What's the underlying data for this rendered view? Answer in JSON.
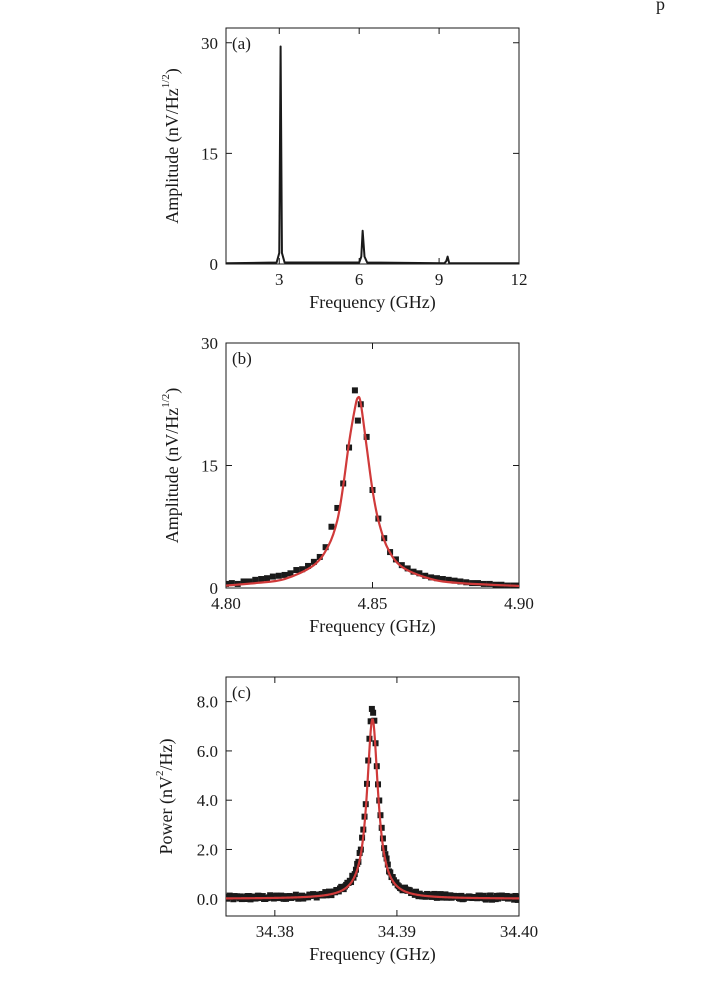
{
  "corner_text": "p",
  "chart_data": [
    {
      "type": "line",
      "panel_label": "(a)",
      "xlabel": "Frequency (GHz)",
      "ylabel": "Amplitude (nV/Hz",
      "ylabel_sup": "1/2",
      "ylabel_end": ")",
      "xlim": [
        1,
        12
      ],
      "ylim": [
        0,
        32
      ],
      "xticks": [
        3,
        6,
        9,
        12
      ],
      "xtick_labels": [
        "3",
        "6",
        "9",
        "12"
      ],
      "yticks": [
        0,
        15,
        30
      ],
      "ytick_labels": [
        "0",
        "15",
        "30"
      ],
      "series": [
        {
          "color": "#1a1a1a",
          "x": [
            1.0,
            2.9,
            3.0,
            3.05,
            3.1,
            3.2,
            6.0,
            6.08,
            6.13,
            6.2,
            6.3,
            9.2,
            9.27,
            9.32,
            9.38,
            12.0
          ],
          "y": [
            0.1,
            0.2,
            1.5,
            29.5,
            1.5,
            0.2,
            0.2,
            1.0,
            4.5,
            1.0,
            0.2,
            0.1,
            0.4,
            1.0,
            0.1,
            0.1
          ]
        }
      ]
    },
    {
      "type": "scatter",
      "panel_label": "(b)",
      "xlabel": "Frequency (GHz)",
      "ylabel": "Amplitude (nV/Hz",
      "ylabel_sup": "1/2",
      "ylabel_end": ")",
      "xlim": [
        4.8,
        4.9
      ],
      "ylim": [
        0,
        30
      ],
      "xticks": [
        4.8,
        4.85,
        4.9
      ],
      "xtick_labels": [
        "4.80",
        "4.85",
        "4.90"
      ],
      "yticks": [
        0,
        15,
        30
      ],
      "ytick_labels": [
        "0",
        "15",
        "30"
      ],
      "fit": {
        "color": "#d03a3a",
        "x": [
          4.8,
          4.81,
          4.82,
          4.83,
          4.835,
          4.838,
          4.84,
          4.842,
          4.844,
          4.845,
          4.846,
          4.848,
          4.85,
          4.852,
          4.855,
          4.86,
          4.87,
          4.88,
          4.9
        ],
        "y": [
          0.3,
          0.6,
          1.1,
          2.8,
          5.2,
          8.3,
          12.5,
          17.8,
          22.0,
          23.3,
          22.6,
          17.3,
          12.0,
          8.3,
          5.0,
          2.6,
          1.1,
          0.6,
          0.25
        ]
      },
      "points": {
        "color": "#1a1a1a",
        "x": [
          4.8,
          4.802,
          4.804,
          4.806,
          4.808,
          4.81,
          4.812,
          4.814,
          4.816,
          4.818,
          4.82,
          4.822,
          4.824,
          4.826,
          4.828,
          4.83,
          4.832,
          4.834,
          4.836,
          4.838,
          4.84,
          4.842,
          4.844,
          4.845,
          4.846,
          4.848,
          4.85,
          4.852,
          4.854,
          4.856,
          4.858,
          4.86,
          4.862,
          4.864,
          4.866,
          4.868,
          4.87,
          4.872,
          4.874,
          4.876,
          4.878,
          4.88,
          4.882,
          4.884,
          4.886,
          4.888,
          4.89,
          4.892,
          4.894,
          4.896,
          4.898,
          4.9
        ],
        "y": [
          0.5,
          0.6,
          0.5,
          0.8,
          0.8,
          1.0,
          1.1,
          1.2,
          1.4,
          1.5,
          1.6,
          1.8,
          2.2,
          2.3,
          2.7,
          3.2,
          3.8,
          5.0,
          7.5,
          9.8,
          12.8,
          17.2,
          24.2,
          20.5,
          22.5,
          18.5,
          12.0,
          8.5,
          6.1,
          4.4,
          3.5,
          2.8,
          2.4,
          2.0,
          1.8,
          1.5,
          1.3,
          1.2,
          1.1,
          1.0,
          0.9,
          0.8,
          0.7,
          0.6,
          0.6,
          0.5,
          0.5,
          0.4,
          0.4,
          0.3,
          0.3,
          0.3
        ]
      }
    },
    {
      "type": "scatter",
      "panel_label": "(c)",
      "xlabel": "Frequency (GHz)",
      "ylabel": "Power (nV",
      "ylabel_sup": "2",
      "ylabel_end": "/Hz)",
      "xlim": [
        34.376,
        34.4
      ],
      "ylim": [
        -0.7,
        9.0
      ],
      "xticks": [
        34.38,
        34.39,
        34.4
      ],
      "xtick_labels": [
        "34.38",
        "34.39",
        "34.40"
      ],
      "yticks": [
        0,
        2,
        4,
        6,
        8
      ],
      "ytick_labels": [
        "0.0",
        "2.0",
        "4.0",
        "6.0",
        "8.0"
      ],
      "fit": {
        "color": "#d03a3a",
        "center": 34.388,
        "amplitude": 7.3,
        "hwhm": 0.00055,
        "baseline": 0.0,
        "x_range": [
          34.376,
          34.4
        ]
      },
      "points": {
        "color": "#1a1a1a",
        "x_range": [
          34.376,
          34.4
        ],
        "count": 240,
        "center": 34.388,
        "amplitude": 7.55,
        "hwhm": 0.00058,
        "baseline": 0.02,
        "noise": 0.09
      }
    }
  ]
}
